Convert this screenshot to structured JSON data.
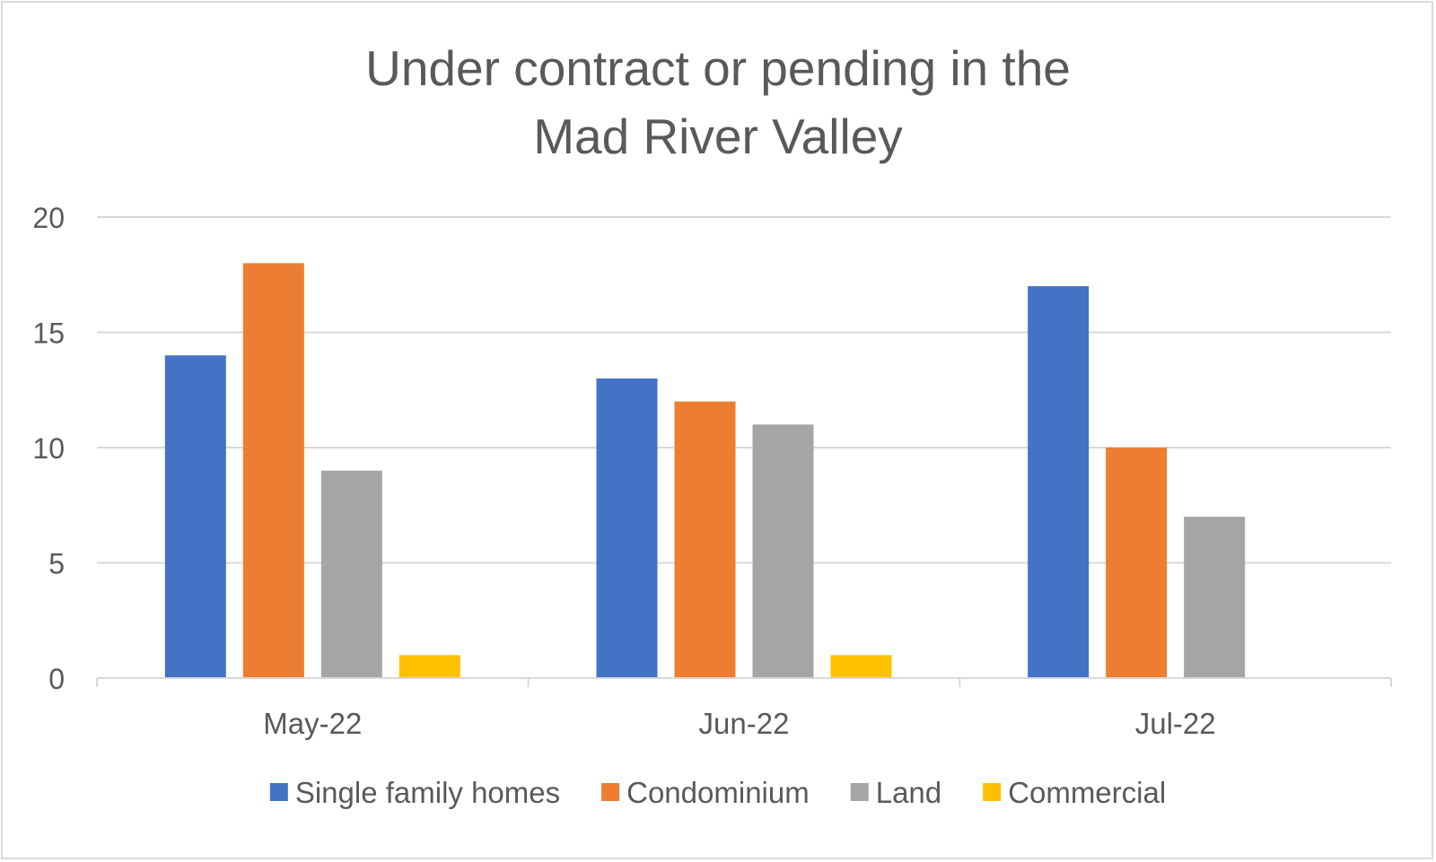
{
  "chart_data": {
    "type": "bar",
    "title_lines": [
      "Under contract or pending in the",
      "Mad River Valley"
    ],
    "categories": [
      "May-22",
      "Jun-22",
      "Jul-22"
    ],
    "series": [
      {
        "name": "Single family homes",
        "color": "#4472c4",
        "values": [
          14,
          13,
          17
        ]
      },
      {
        "name": "Condominium",
        "color": "#ed7d31",
        "values": [
          18,
          12,
          10
        ]
      },
      {
        "name": "Land",
        "color": "#a5a5a5",
        "values": [
          9,
          11,
          7
        ]
      },
      {
        "name": "Commercial",
        "color": "#ffc000",
        "values": [
          1,
          1,
          0
        ]
      }
    ],
    "ylim": [
      0,
      20
    ],
    "yticks": [
      0,
      5,
      10,
      15,
      20
    ],
    "grid": true,
    "legend": "bottom",
    "xlabel": "",
    "ylabel": ""
  }
}
